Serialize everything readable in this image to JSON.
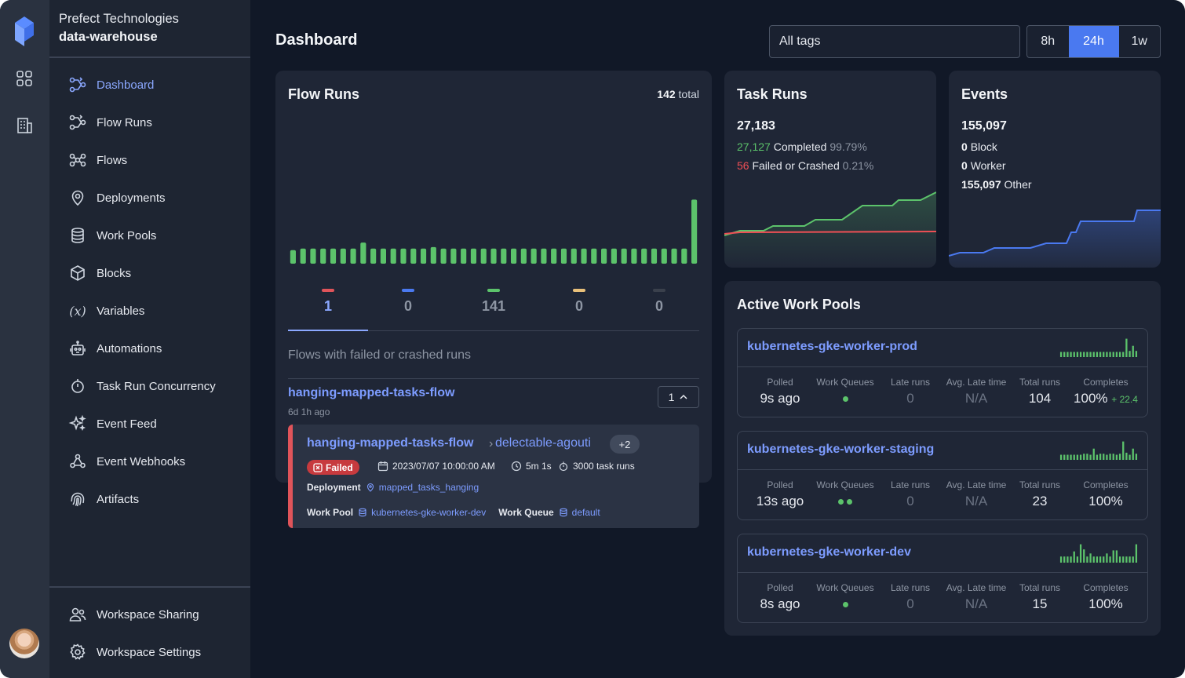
{
  "workspace": {
    "org": "Prefect Technologies",
    "name": "data-warehouse"
  },
  "nav": [
    {
      "label": "Dashboard",
      "icon": "flow-runs-icon",
      "active": true
    },
    {
      "label": "Flow Runs",
      "icon": "flow-runs-icon"
    },
    {
      "label": "Flows",
      "icon": "flows-icon"
    },
    {
      "label": "Deployments",
      "icon": "map-pin-icon"
    },
    {
      "label": "Work Pools",
      "icon": "database-icon"
    },
    {
      "label": "Blocks",
      "icon": "cube-icon"
    },
    {
      "label": "Variables",
      "icon": "variable-icon"
    },
    {
      "label": "Automations",
      "icon": "robot-icon"
    },
    {
      "label": "Task Run Concurrency",
      "icon": "stopwatch-icon"
    },
    {
      "label": "Event Feed",
      "icon": "sparkles-icon"
    },
    {
      "label": "Event Webhooks",
      "icon": "webhook-icon"
    },
    {
      "label": "Artifacts",
      "icon": "fingerprint-icon"
    }
  ],
  "bottom_nav": [
    {
      "label": "Workspace Sharing",
      "icon": "users-icon"
    },
    {
      "label": "Workspace Settings",
      "icon": "gear-icon"
    }
  ],
  "header": {
    "title": "Dashboard",
    "tags_value": "All tags",
    "ranges": [
      "8h",
      "24h",
      "1w"
    ],
    "selected_range": "24h"
  },
  "flow_runs": {
    "title": "Flow Runs",
    "total_count": "142",
    "total_suffix": "total",
    "histogram": [
      0.18,
      0.2,
      0.2,
      0.18,
      0.2,
      0.2,
      0.2,
      0.18,
      0.2,
      0.2,
      0.2,
      0.2,
      0.2,
      0.2,
      0.28,
      0.82,
      0.2,
      0.2,
      0.2,
      0.2,
      0.2,
      0.2,
      0.2,
      0.2,
      0.2,
      0.2,
      0.2,
      0.22,
      0.22,
      0.2,
      0.2,
      0.2,
      0.2,
      0.2,
      0.2,
      0.2,
      0.2,
      0.2,
      0.2,
      0.2,
      0.2,
      0.2,
      0.2,
      0.2,
      0.2,
      0.2,
      0.2,
      0.2,
      0.2,
      0.2,
      0.2,
      0.2,
      0.2,
      0.2,
      0.2,
      0.2,
      0.2,
      0.2,
      0.2,
      0.2,
      0.2,
      0.2,
      0.2,
      0.2,
      0.2,
      0.2,
      0.2,
      0.2,
      0.2,
      0.2,
      0.2,
      0.2,
      0.2,
      0.2,
      0.2,
      0.2,
      0.2,
      0.2,
      0.2,
      0.2,
      0.85,
      0.18
    ],
    "states": [
      {
        "name": "failed",
        "value": "1",
        "color": "#e0545a",
        "active": true
      },
      {
        "name": "running",
        "value": "0",
        "color": "#4a79f0"
      },
      {
        "name": "completed",
        "value": "141",
        "color": "#5cc36b"
      },
      {
        "name": "late",
        "value": "0",
        "color": "#e8c07a"
      },
      {
        "name": "cancelled",
        "value": "0",
        "color": "#3a404c"
      }
    ],
    "section_label": "Flows with failed or crashed runs",
    "flow": {
      "name": "hanging-mapped-tasks-flow",
      "ago": "6d 1h ago",
      "count": "1",
      "run": {
        "flow_name": "hanging-mapped-tasks-flow",
        "run_name": "delectable-agouti",
        "extra": "+2",
        "state": "Failed",
        "start": "2023/07/07 10:00:00 AM",
        "duration": "5m 1s",
        "task_runs": "3000 task runs",
        "deployment_label": "Deployment",
        "deployment": "mapped_tasks_hanging",
        "work_pool_label": "Work Pool",
        "work_pool": "kubernetes-gke-worker-dev",
        "work_queue_label": "Work Queue",
        "work_queue": "default"
      }
    }
  },
  "task_runs": {
    "title": "Task Runs",
    "total": "27,183",
    "completed_count": "27,127",
    "completed_label": "Completed",
    "completed_pct": "99.79%",
    "failed_count": "56",
    "failed_label": "Failed or Crashed",
    "failed_pct": "0.21%"
  },
  "events": {
    "title": "Events",
    "total": "155,097",
    "rows": [
      {
        "count": "0",
        "label": "Block"
      },
      {
        "count": "0",
        "label": "Worker"
      },
      {
        "count": "155,097",
        "label": "Other"
      }
    ]
  },
  "work_pools": {
    "title": "Active Work Pools",
    "columns": [
      "Polled",
      "Work Queues",
      "Late runs",
      "Avg. Late time",
      "Total runs",
      "Completes"
    ],
    "pools": [
      {
        "name": "kubernetes-gke-worker-prod",
        "polled": "9s ago",
        "queues": 1,
        "late_runs": "0",
        "avg_late": "N/A",
        "total_runs": "104",
        "completes": "100%",
        "delta": "+ 22.4",
        "spark": [
          0.25,
          0.25,
          0.25,
          0.25,
          0.25,
          0.25,
          0.25,
          0.25,
          0.25,
          0.25,
          0.25,
          0.25,
          0.25,
          0.25,
          0.25,
          0.25,
          0.25,
          0.25,
          0.25,
          0.25,
          0.9,
          0.3,
          0.55,
          0.3
        ]
      },
      {
        "name": "kubernetes-gke-worker-staging",
        "polled": "13s ago",
        "queues": 2,
        "late_runs": "0",
        "avg_late": "N/A",
        "total_runs": "23",
        "completes": "100%",
        "delta": "",
        "spark": [
          0.25,
          0.25,
          0.25,
          0.25,
          0.25,
          0.25,
          0.25,
          0.3,
          0.3,
          0.25,
          0.55,
          0.25,
          0.3,
          0.3,
          0.25,
          0.3,
          0.3,
          0.25,
          0.3,
          0.9,
          0.35,
          0.25,
          0.55,
          0.3
        ]
      },
      {
        "name": "kubernetes-gke-worker-dev",
        "polled": "8s ago",
        "queues": 1,
        "late_runs": "0",
        "avg_late": "N/A",
        "total_runs": "15",
        "completes": "100%",
        "delta": "",
        "spark": [
          0.3,
          0.3,
          0.3,
          0.3,
          0.55,
          0.3,
          0.9,
          0.65,
          0.3,
          0.45,
          0.3,
          0.3,
          0.3,
          0.3,
          0.45,
          0.3,
          0.6,
          0.6,
          0.3,
          0.3,
          0.3,
          0.3,
          0.3,
          0.9
        ]
      }
    ]
  },
  "colors": {
    "accent": "#4a79f0",
    "link": "#7d9cff",
    "success": "#5cc36b",
    "danger": "#ef4f55"
  }
}
